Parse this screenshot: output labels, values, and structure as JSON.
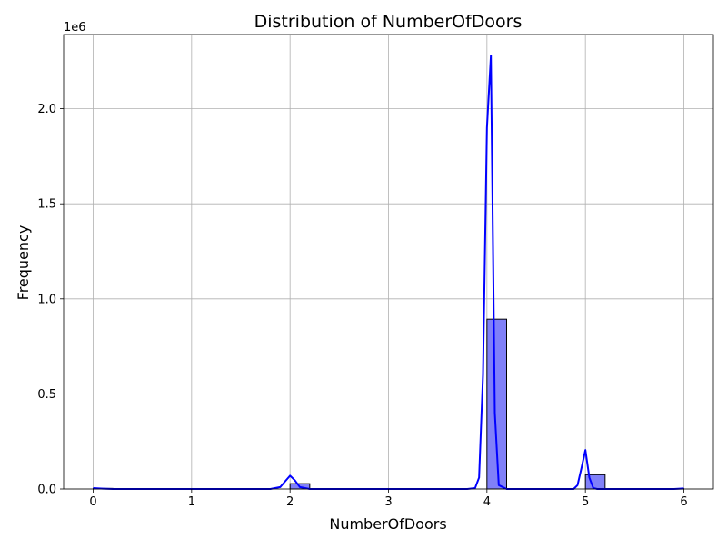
{
  "chart_data": {
    "type": "bar",
    "title": "Distribution of NumberOfDoors",
    "xlabel": "NumberOfDoors",
    "ylabel": "Frequency",
    "y_offset_label": "1e6",
    "xlim": [
      -0.3,
      6.3
    ],
    "ylim": [
      0,
      2390000
    ],
    "grid": true,
    "x_ticks": [
      {
        "value": 0,
        "label": "0"
      },
      {
        "value": 1,
        "label": "1"
      },
      {
        "value": 2,
        "label": "2"
      },
      {
        "value": 3,
        "label": "3"
      },
      {
        "value": 4,
        "label": "4"
      },
      {
        "value": 5,
        "label": "5"
      },
      {
        "value": 6,
        "label": "6"
      }
    ],
    "y_ticks": [
      {
        "value": 0,
        "label": "0.0"
      },
      {
        "value": 500000,
        "label": "0.5"
      },
      {
        "value": 1000000,
        "label": "1.0"
      },
      {
        "value": 1500000,
        "label": "1.5"
      },
      {
        "value": 2000000,
        "label": "2.0"
      }
    ],
    "histogram": {
      "bins": [
        {
          "x0": 0.0,
          "x1": 0.2,
          "count": 3000
        },
        {
          "x0": 2.0,
          "x1": 2.2,
          "count": 28000
        },
        {
          "x0": 4.0,
          "x1": 4.2,
          "count": 893000
        },
        {
          "x0": 5.0,
          "x1": 5.2,
          "count": 75000
        },
        {
          "x0": 5.8,
          "x1": 6.0,
          "count": 2000
        }
      ],
      "color": "#8080f8"
    },
    "kde": {
      "color": "#0000ff",
      "x": [
        0.0,
        0.1,
        0.2,
        1.8,
        1.9,
        1.95,
        2.0,
        2.05,
        2.1,
        2.2,
        3.8,
        3.88,
        3.92,
        3.96,
        4.0,
        4.04,
        4.08,
        4.12,
        4.2,
        4.88,
        4.92,
        4.96,
        5.0,
        5.04,
        5.08,
        5.12,
        5.2,
        5.9,
        6.0
      ],
      "y": [
        5000,
        2000,
        0,
        0,
        10000,
        40000,
        70000,
        45000,
        10000,
        0,
        0,
        5000,
        60000,
        600000,
        1900000,
        2280000,
        400000,
        20000,
        0,
        0,
        20000,
        110000,
        205000,
        60000,
        5000,
        0,
        0,
        0,
        3000
      ]
    }
  }
}
